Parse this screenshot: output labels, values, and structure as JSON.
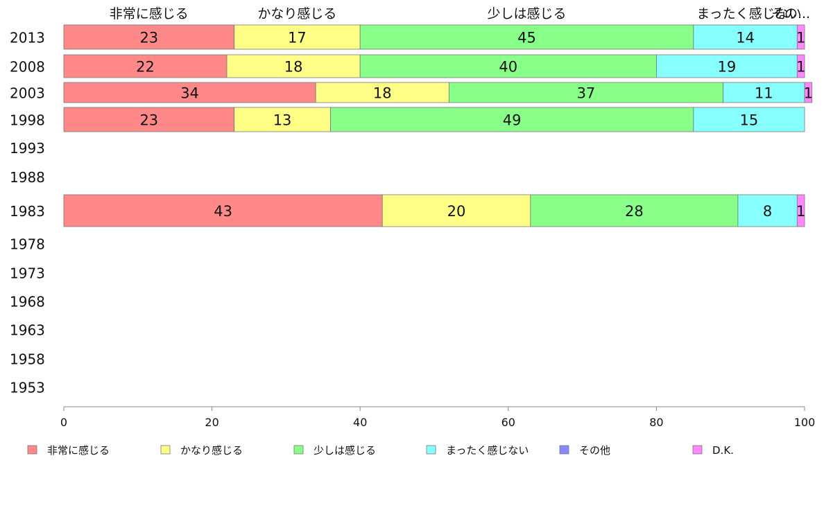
{
  "chart_data": {
    "type": "bar",
    "orientation": "horizontal",
    "stacked": true,
    "title": "",
    "xlabel": "",
    "ylabel": "",
    "xlim": [
      0,
      100
    ],
    "x_ticks": [
      0,
      20,
      40,
      60,
      80,
      100
    ],
    "categories": [
      "2013",
      "2008",
      "2003",
      "1998",
      "1993",
      "1988",
      "1983",
      "1978",
      "1973",
      "1968",
      "1963",
      "1958",
      "1953"
    ],
    "top_labels": [
      "非常に感じる",
      "かなり感じる",
      "少しは感じる",
      "まったく感じない",
      "その..."
    ],
    "series": [
      {
        "name": "非常に感じる",
        "color": "#ff8888",
        "values": [
          23,
          22,
          34,
          23,
          null,
          null,
          43,
          null,
          null,
          null,
          null,
          null,
          null
        ]
      },
      {
        "name": "かなり感じる",
        "color": "#ffff88",
        "values": [
          17,
          18,
          18,
          13,
          null,
          null,
          20,
          null,
          null,
          null,
          null,
          null,
          null
        ]
      },
      {
        "name": "少しは感じる",
        "color": "#88ff88",
        "values": [
          45,
          40,
          37,
          49,
          null,
          null,
          28,
          null,
          null,
          null,
          null,
          null,
          null
        ]
      },
      {
        "name": "まったく感じない",
        "color": "#88ffff",
        "values": [
          14,
          19,
          11,
          15,
          null,
          null,
          8,
          null,
          null,
          null,
          null,
          null,
          null
        ]
      },
      {
        "name": "その他",
        "color": "#8888ff",
        "values": [
          null,
          null,
          null,
          null,
          null,
          null,
          null,
          null,
          null,
          null,
          null,
          null,
          null
        ]
      },
      {
        "name": "D.K.",
        "color": "#ff88ff",
        "values": [
          1,
          1,
          1,
          null,
          null,
          null,
          1,
          null,
          null,
          null,
          null,
          null,
          null
        ]
      }
    ],
    "legend_position": "bottom",
    "grid": false
  }
}
